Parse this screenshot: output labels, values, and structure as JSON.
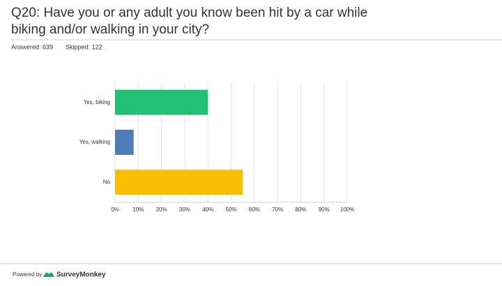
{
  "header": {
    "title_lines": [
      "Q20: Have you or any adult you know been hit by a car while",
      "biking and/or walking in your city?"
    ],
    "answered": "Answered: 639",
    "skipped": "Skipped: 122"
  },
  "chart_data": {
    "type": "bar",
    "orientation": "horizontal",
    "categories": [
      "Yes, biking",
      "Yes, walking",
      "No"
    ],
    "values": [
      40,
      8,
      55
    ],
    "colors": [
      "#21bf73",
      "#507cb6",
      "#f9be00"
    ],
    "xlim": [
      0,
      100
    ],
    "xticks": [
      {
        "value": 0,
        "label": "0%"
      },
      {
        "value": 10,
        "label": "10%"
      },
      {
        "value": 20,
        "label": "20%"
      },
      {
        "value": 30,
        "label": "30%"
      },
      {
        "value": 40,
        "label": "40%"
      },
      {
        "value": 50,
        "label": "50%"
      },
      {
        "value": 60,
        "label": "60%"
      },
      {
        "value": 70,
        "label": "70%"
      },
      {
        "value": 80,
        "label": "80%"
      },
      {
        "value": 90,
        "label": "90%"
      },
      {
        "value": 100,
        "label": "100%"
      }
    ],
    "grid": true
  },
  "footer": {
    "powered_by": "Powered by",
    "brand": "SurveyMonkey"
  }
}
